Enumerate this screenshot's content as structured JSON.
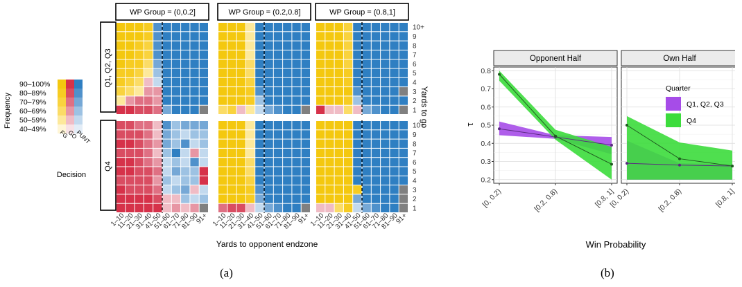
{
  "colors": {
    "fg": "#f4c80f",
    "go": "#d6324a",
    "punt": "#2f7fc2",
    "fg_scale": [
      "#fff6d6",
      "#fde99b",
      "#fbdc66",
      "#f9d33e",
      "#f7cc22",
      "#f4c80f"
    ],
    "go_scale": [
      "#f8e1e5",
      "#f0bcc5",
      "#e796a4",
      "#df7083",
      "#d94d62",
      "#d6324a"
    ],
    "punt_scale": [
      "#e3edf7",
      "#c2d9ee",
      "#9dc2e3",
      "#76a8d6",
      "#4f91cb",
      "#2f7fc2"
    ],
    "na": "#808080",
    "q123": "#a64ce8",
    "q4": "#3cdc3c",
    "line": "#404040"
  },
  "caption_a": "(a)",
  "caption_b": "(b)",
  "panel_a": {
    "legend_title": "Frequency",
    "legend_labels": [
      "90–100%",
      "80–89%",
      "70–79%",
      "60–69%",
      "50–59%",
      "40–49%"
    ],
    "decision_title": "Decision",
    "decision_labels": [
      "FG",
      "GO",
      "PUNT"
    ],
    "facet_columns": [
      "WP Group = (0,0.2]",
      "WP Group = (0.2,0.8]",
      "WP Group = (0.8,1]"
    ],
    "facet_rows": [
      "Q1, Q2, Q3",
      "Q4"
    ],
    "x_ticks": [
      "1–10",
      "11–20",
      "21–30",
      "31–40",
      "41–50",
      "51–60",
      "61–70",
      "71–80",
      "81–90",
      "91+"
    ],
    "y_ticks": [
      "1",
      "2",
      "3",
      "4",
      "5",
      "6",
      "7",
      "8",
      "9",
      "10+"
    ],
    "xlabel": "Yards to opponent endzone",
    "ylabel": "Yards to go"
  },
  "chart_data": [
    {
      "type": "heatmap",
      "x_label": "Yards to opponent endzone",
      "y_label": "Yards to go",
      "x_categories": [
        "1–10",
        "11–20",
        "21–30",
        "31–40",
        "41–50",
        "51–60",
        "61–70",
        "71–80",
        "81–90",
        "91+"
      ],
      "y_categories": [
        "1",
        "2",
        "3",
        "4",
        "5",
        "6",
        "7",
        "8",
        "9",
        "10+"
      ],
      "cell_format": "decision+level; level 0=40–49% … 5=90–100%; y rows ordered 1 → 10+; NA = no data",
      "panels": [
        {
          "wp_group": "WP Group = (0,0.2]",
          "quarter": "Q1, Q2, Q3",
          "cells": [
            [
              "G5",
              "G5",
              "G4",
              "G4",
              "G3",
              "P3",
              "P5",
              "P5",
              "P5",
              "NA"
            ],
            [
              "F1",
              "G2",
              "G3",
              "G3",
              "G2",
              "P5",
              "P5",
              "P5",
              "P5",
              "P5"
            ],
            [
              "F3",
              "F2",
              "F1",
              "G2",
              "G2",
              "P5",
              "P5",
              "P5",
              "P5",
              "P5"
            ],
            [
              "F4",
              "F3",
              "F2",
              "G1",
              "P1",
              "P5",
              "P5",
              "P5",
              "P5",
              "P5"
            ],
            [
              "F4",
              "F4",
              "F3",
              "F1",
              "P2",
              "P5",
              "P5",
              "P5",
              "P5",
              "P5"
            ],
            [
              "F5",
              "F4",
              "F4",
              "F2",
              "P3",
              "P5",
              "P5",
              "P5",
              "P5",
              "P5"
            ],
            [
              "F5",
              "F5",
              "F4",
              "F3",
              "P4",
              "P5",
              "P5",
              "P5",
              "P5",
              "P5"
            ],
            [
              "F5",
              "F5",
              "F4",
              "F3",
              "P4",
              "P5",
              "P5",
              "P5",
              "P5",
              "P5"
            ],
            [
              "F5",
              "F5",
              "F5",
              "F4",
              "P4",
              "P5",
              "P5",
              "P5",
              "P5",
              "P5"
            ],
            [
              "F5",
              "F5",
              "F5",
              "F4",
              "P4",
              "P5",
              "P5",
              "P5",
              "P5",
              "P5"
            ]
          ]
        },
        {
          "wp_group": "WP Group = (0.2,0.8]",
          "quarter": "Q1, Q2, Q3",
          "cells": [
            [
              "F2",
              "F3",
              "G1",
              "F1",
              "P1",
              "P3",
              "P4",
              "P5",
              "P5",
              "NA"
            ],
            [
              "F5",
              "F5",
              "F5",
              "F4",
              "P2",
              "P5",
              "P5",
              "P5",
              "P5",
              "P5"
            ],
            [
              "F5",
              "F5",
              "F5",
              "F4",
              "P4",
              "P5",
              "P5",
              "P5",
              "P5",
              "P5"
            ],
            [
              "F5",
              "F5",
              "F5",
              "F3",
              "P5",
              "P5",
              "P5",
              "P5",
              "P5",
              "P5"
            ],
            [
              "F5",
              "F5",
              "F5",
              "F2",
              "P5",
              "P5",
              "P5",
              "P5",
              "P5",
              "P5"
            ],
            [
              "F5",
              "F5",
              "F5",
              "F2",
              "P5",
              "P5",
              "P5",
              "P5",
              "P5",
              "P5"
            ],
            [
              "F5",
              "F5",
              "F5",
              "F1",
              "P5",
              "P5",
              "P5",
              "P5",
              "P5",
              "P5"
            ],
            [
              "F5",
              "F5",
              "F5",
              "F1",
              "P5",
              "P5",
              "P5",
              "P5",
              "P5",
              "P5"
            ],
            [
              "F5",
              "F5",
              "F5",
              "F1",
              "P5",
              "P5",
              "P5",
              "P5",
              "P5",
              "P5"
            ],
            [
              "F5",
              "F5",
              "F5",
              "F1",
              "P5",
              "P5",
              "P5",
              "P5",
              "P5",
              "P5"
            ]
          ]
        },
        {
          "wp_group": "WP Group = (0.8,1]",
          "quarter": "Q1, Q2, Q3",
          "cells": [
            [
              "G5",
              "G1",
              "G1",
              "F2",
              "G1",
              "P3",
              "P4",
              "P5",
              "P5",
              "NA"
            ],
            [
              "F5",
              "F5",
              "F5",
              "F4",
              "P2",
              "P5",
              "P5",
              "P5",
              "P5",
              "P5"
            ],
            [
              "F5",
              "F5",
              "F5",
              "F5",
              "P4",
              "P5",
              "P5",
              "P5",
              "P5",
              "NA"
            ],
            [
              "F5",
              "F5",
              "F5",
              "F4",
              "P5",
              "P5",
              "P5",
              "P5",
              "P5",
              "P5"
            ],
            [
              "F5",
              "F5",
              "F5",
              "F4",
              "P5",
              "P5",
              "P5",
              "P5",
              "P5",
              "P5"
            ],
            [
              "F5",
              "F5",
              "F5",
              "F3",
              "P5",
              "P5",
              "P5",
              "P5",
              "P5",
              "P5"
            ],
            [
              "F5",
              "F5",
              "F5",
              "F3",
              "P5",
              "P5",
              "P5",
              "P5",
              "P5",
              "P5"
            ],
            [
              "F5",
              "F5",
              "F5",
              "F3",
              "P5",
              "P5",
              "P5",
              "P5",
              "P5",
              "P5"
            ],
            [
              "F5",
              "F5",
              "F5",
              "F3",
              "P5",
              "P5",
              "P5",
              "P5",
              "P5",
              "P5"
            ],
            [
              "F5",
              "F5",
              "F5",
              "F3",
              "P5",
              "P5",
              "P5",
              "P5",
              "P5",
              "P5"
            ]
          ]
        },
        {
          "wp_group": "WP Group = (0,0.2]",
          "quarter": "Q4",
          "cells": [
            [
              "G5",
              "G5",
              "G5",
              "G5",
              "G5",
              "G1",
              "G2",
              "G1",
              "G2",
              "NA"
            ],
            [
              "G5",
              "G5",
              "G5",
              "G5",
              "G4",
              "G1",
              "G1",
              "P2",
              "P1",
              "P2"
            ],
            [
              "G5",
              "G4",
              "G4",
              "G4",
              "G3",
              "P1",
              "P2",
              "P3",
              "G1",
              "P1"
            ],
            [
              "G4",
              "G4",
              "G4",
              "G4",
              "G2",
              "P2",
              "P1",
              "P2",
              "P2",
              "G5"
            ],
            [
              "G5",
              "G5",
              "G4",
              "G4",
              "G3",
              "P1",
              "P3",
              "P2",
              "P2",
              "G5"
            ],
            [
              "G5",
              "G5",
              "G4",
              "G3",
              "G2",
              "P1",
              "P2",
              "P1",
              "P4",
              "P1"
            ],
            [
              "G4",
              "G4",
              "G4",
              "G3",
              "G1",
              "P2",
              "P5",
              "P1",
              "G2",
              "P1"
            ],
            [
              "G5",
              "G5",
              "G4",
              "G3",
              "G2",
              "P3",
              "P2",
              "P4",
              "P1",
              "P2"
            ],
            [
              "G4",
              "G4",
              "G4",
              "G3",
              "G1",
              "P3",
              "P2",
              "P1",
              "P2",
              "P2"
            ],
            [
              "G4",
              "G4",
              "G3",
              "G3",
              "G1",
              "P4",
              "P2",
              "P3",
              "P3",
              "P3"
            ]
          ]
        },
        {
          "wp_group": "WP Group = (0.2,0.8]",
          "quarter": "Q4",
          "cells": [
            [
              "G3",
              "G4",
              "G4",
              "G1",
              "P1",
              "P3",
              "P4",
              "P5",
              "P5",
              "NA"
            ],
            [
              "F5",
              "F5",
              "F5",
              "F4",
              "P3",
              "P5",
              "P5",
              "P5",
              "P5",
              "P5"
            ],
            [
              "F5",
              "F5",
              "F5",
              "F4",
              "P4",
              "P5",
              "P5",
              "P5",
              "P5",
              "P5"
            ],
            [
              "F5",
              "F5",
              "F5",
              "F3",
              "P5",
              "P5",
              "P5",
              "P5",
              "P5",
              "P5"
            ],
            [
              "F5",
              "F5",
              "F5",
              "F2",
              "P5",
              "P5",
              "P5",
              "P5",
              "P5",
              "P5"
            ],
            [
              "F5",
              "F5",
              "F5",
              "F2",
              "P5",
              "P5",
              "P5",
              "P5",
              "P5",
              "P5"
            ],
            [
              "F5",
              "F5",
              "F5",
              "F1",
              "P5",
              "P5",
              "P5",
              "P5",
              "P5",
              "P5"
            ],
            [
              "F5",
              "F5",
              "F5",
              "F1",
              "P5",
              "P5",
              "P5",
              "P5",
              "P5",
              "P5"
            ],
            [
              "F5",
              "F5",
              "F5",
              "F1",
              "P5",
              "P5",
              "P5",
              "P5",
              "P5",
              "P5"
            ],
            [
              "F5",
              "F5",
              "F5",
              "F1",
              "P5",
              "P5",
              "P5",
              "P5",
              "P5",
              "P5"
            ]
          ]
        },
        {
          "wp_group": "WP Group = (0.8,1]",
          "quarter": "Q4",
          "cells": [
            [
              "G1",
              "G1",
              "F2",
              "F4",
              "P1",
              "P3",
              "P4",
              "P5",
              "P5",
              "NA"
            ],
            [
              "F5",
              "F5",
              "F5",
              "F5",
              "P3",
              "P5",
              "P5",
              "P5",
              "P5",
              "NA"
            ],
            [
              "F5",
              "F5",
              "F5",
              "F5",
              "F4",
              "P5",
              "P5",
              "P5",
              "P5",
              "NA"
            ],
            [
              "F5",
              "F5",
              "F5",
              "F5",
              "P5",
              "P5",
              "P5",
              "P5",
              "P5",
              "P5"
            ],
            [
              "F5",
              "F5",
              "F5",
              "F5",
              "P5",
              "P5",
              "P5",
              "P5",
              "P5",
              "P5"
            ],
            [
              "F5",
              "F5",
              "F5",
              "F5",
              "P5",
              "P5",
              "P5",
              "P5",
              "P5",
              "P5"
            ],
            [
              "F5",
              "F5",
              "F5",
              "F5",
              "P5",
              "P5",
              "P5",
              "P5",
              "P5",
              "P5"
            ],
            [
              "F5",
              "F5",
              "F5",
              "F5",
              "P5",
              "P5",
              "P5",
              "P5",
              "P5",
              "P5"
            ],
            [
              "F5",
              "F5",
              "F5",
              "F5",
              "P5",
              "P5",
              "P5",
              "P5",
              "P5",
              "P5"
            ],
            [
              "F5",
              "F5",
              "F5",
              "F5",
              "P5",
              "P5",
              "P5",
              "P5",
              "P5",
              "P5"
            ]
          ]
        }
      ]
    },
    {
      "type": "line",
      "xlabel": "Win Probability",
      "ylabel": "τ",
      "categories": [
        "[0, 0.2)",
        "[0.2, 0.8)",
        "[0.8, 1]"
      ],
      "ylim": [
        0.18,
        0.82
      ],
      "yticks": [
        0.2,
        0.3,
        0.4,
        0.5,
        0.6,
        0.7,
        0.8
      ],
      "grid": true,
      "legend_title": "Quarter",
      "legend_position": "top-right of Own Half panel",
      "facets": [
        {
          "title": "Opponent Half",
          "series": [
            {
              "name": "Q1, Q2, Q3",
              "values": [
                0.48,
                0.435,
                0.39
              ],
              "lower": [
                0.445,
                0.425,
                0.34
              ],
              "upper": [
                0.52,
                0.445,
                0.435
              ]
            },
            {
              "name": "Q4",
              "values": [
                0.78,
                0.44,
                0.285
              ],
              "lower": [
                0.745,
                0.42,
                0.2
              ],
              "upper": [
                0.8,
                0.475,
                0.38
              ]
            }
          ]
        },
        {
          "title": "Own Half",
          "series": [
            {
              "name": "Q1, Q2, Q3",
              "values": [
                0.29,
                0.28,
                0.275
              ],
              "lower": [
                0.2,
                0.2,
                0.2
              ],
              "upper": [
                0.415,
                0.29,
                0.285
              ]
            },
            {
              "name": "Q4",
              "values": [
                0.5,
                0.315,
                0.275
              ],
              "lower": [
                0.2,
                0.2,
                0.2
              ],
              "upper": [
                0.55,
                0.405,
                0.36
              ]
            }
          ]
        }
      ]
    }
  ]
}
